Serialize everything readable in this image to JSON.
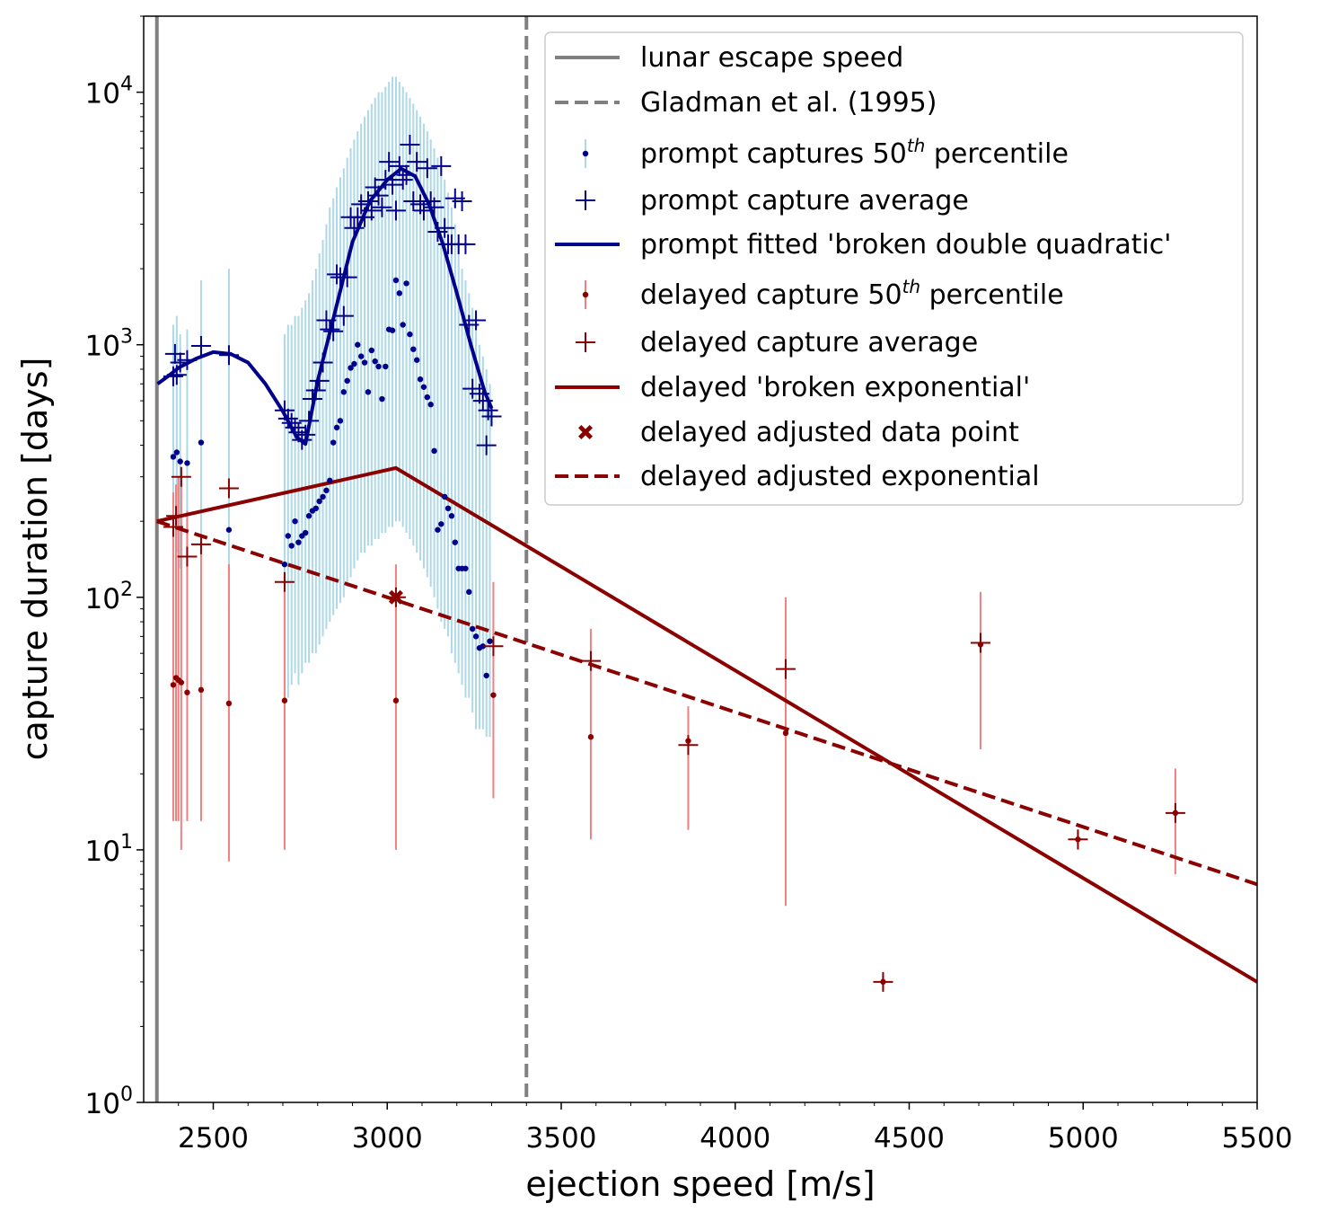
{
  "chart_data": {
    "type": "scatter",
    "title": "",
    "xlabel": "ejection speed [m/s]",
    "ylabel": "capture duration [days]",
    "xlim": [
      2300,
      5500
    ],
    "ylim": [
      1,
      20000
    ],
    "yscale": "log",
    "grid": false,
    "legend_position": "top-right",
    "x_ticks": [
      2500,
      3000,
      3500,
      4000,
      4500,
      5000,
      5500
    ],
    "x_tick_labels": [
      "2500",
      "3000",
      "3500",
      "4000",
      "4500",
      "5000",
      "5500"
    ],
    "y_ticks": [
      1,
      10,
      100,
      1000,
      10000
    ],
    "y_tick_labels": [
      {
        "base": "10",
        "exp": "0"
      },
      {
        "base": "10",
        "exp": "1"
      },
      {
        "base": "10",
        "exp": "2"
      },
      {
        "base": "10",
        "exp": "3"
      },
      {
        "base": "10",
        "exp": "4"
      }
    ],
    "colors": {
      "prompt": "#00008b",
      "prompt_err": "#add8e6",
      "delayed": "#8b0000",
      "delayed_err": "#f08080",
      "vline": "#808080"
    },
    "vlines": [
      {
        "name": "lunar escape speed",
        "x": 2338,
        "style": "solid"
      },
      {
        "name": "Gladman et al. (1995)",
        "x": 3400,
        "style": "dashed"
      }
    ],
    "prompt_median": [
      {
        "x": 2385,
        "y": 360,
        "lo": 140,
        "hi": 1200
      },
      {
        "x": 2395,
        "y": 375,
        "lo": 150,
        "hi": 1300
      },
      {
        "x": 2405,
        "y": 345,
        "lo": 130,
        "hi": 1100
      },
      {
        "x": 2425,
        "y": 340,
        "lo": 140,
        "hi": 1150
      },
      {
        "x": 2465,
        "y": 410,
        "lo": 150,
        "hi": 1800
      },
      {
        "x": 2545,
        "y": 185,
        "lo": 90,
        "hi": 2000
      },
      {
        "x": 2705,
        "y": 135,
        "lo": 30,
        "hi": 1100
      },
      {
        "x": 2715,
        "y": 175,
        "lo": 40,
        "hi": 1200
      },
      {
        "x": 2725,
        "y": 160,
        "lo": 45,
        "hi": 1200
      },
      {
        "x": 2735,
        "y": 200,
        "lo": 50,
        "hi": 1300
      },
      {
        "x": 2745,
        "y": 165,
        "lo": 45,
        "hi": 1300
      },
      {
        "x": 2755,
        "y": 175,
        "lo": 50,
        "hi": 1400
      },
      {
        "x": 2765,
        "y": 180,
        "lo": 55,
        "hi": 1500
      },
      {
        "x": 2775,
        "y": 210,
        "lo": 55,
        "hi": 1600
      },
      {
        "x": 2785,
        "y": 220,
        "lo": 60,
        "hi": 1800
      },
      {
        "x": 2795,
        "y": 225,
        "lo": 60,
        "hi": 2000
      },
      {
        "x": 2805,
        "y": 240,
        "lo": 65,
        "hi": 2300
      },
      {
        "x": 2815,
        "y": 250,
        "lo": 70,
        "hi": 2600
      },
      {
        "x": 2825,
        "y": 265,
        "lo": 75,
        "hi": 3000
      },
      {
        "x": 2835,
        "y": 290,
        "lo": 80,
        "hi": 3500
      },
      {
        "x": 2845,
        "y": 410,
        "lo": 85,
        "hi": 3800
      },
      {
        "x": 2855,
        "y": 470,
        "lo": 90,
        "hi": 4200
      },
      {
        "x": 2865,
        "y": 500,
        "lo": 95,
        "hi": 4600
      },
      {
        "x": 2875,
        "y": 650,
        "lo": 100,
        "hi": 5000
      },
      {
        "x": 2885,
        "y": 720,
        "lo": 110,
        "hi": 5500
      },
      {
        "x": 2895,
        "y": 810,
        "lo": 120,
        "hi": 6000
      },
      {
        "x": 2905,
        "y": 840,
        "lo": 130,
        "hi": 6500
      },
      {
        "x": 2915,
        "y": 1000,
        "lo": 140,
        "hi": 7000
      },
      {
        "x": 2925,
        "y": 900,
        "lo": 150,
        "hi": 7500
      },
      {
        "x": 2935,
        "y": 850,
        "lo": 150,
        "hi": 8000
      },
      {
        "x": 2945,
        "y": 650,
        "lo": 160,
        "hi": 8500
      },
      {
        "x": 2955,
        "y": 950,
        "lo": 160,
        "hi": 9000
      },
      {
        "x": 2965,
        "y": 860,
        "lo": 170,
        "hi": 9500
      },
      {
        "x": 2975,
        "y": 820,
        "lo": 170,
        "hi": 10000
      },
      {
        "x": 2985,
        "y": 610,
        "lo": 180,
        "hi": 10000
      },
      {
        "x": 2995,
        "y": 820,
        "lo": 180,
        "hi": 10500
      },
      {
        "x": 3005,
        "y": 1150,
        "lo": 190,
        "hi": 11000
      },
      {
        "x": 3015,
        "y": 1140,
        "lo": 190,
        "hi": 11500
      },
      {
        "x": 3025,
        "y": 1800,
        "lo": 200,
        "hi": 11500
      },
      {
        "x": 3035,
        "y": 1600,
        "lo": 200,
        "hi": 11000
      },
      {
        "x": 3045,
        "y": 1200,
        "lo": 190,
        "hi": 10500
      },
      {
        "x": 3055,
        "y": 1750,
        "lo": 180,
        "hi": 10000
      },
      {
        "x": 3065,
        "y": 1100,
        "lo": 170,
        "hi": 9500
      },
      {
        "x": 3075,
        "y": 960,
        "lo": 160,
        "hi": 9000
      },
      {
        "x": 3085,
        "y": 870,
        "lo": 150,
        "hi": 8500
      },
      {
        "x": 3095,
        "y": 730,
        "lo": 140,
        "hi": 8000
      },
      {
        "x": 3105,
        "y": 680,
        "lo": 130,
        "hi": 7500
      },
      {
        "x": 3115,
        "y": 620,
        "lo": 120,
        "hi": 7000
      },
      {
        "x": 3125,
        "y": 580,
        "lo": 110,
        "hi": 6500
      },
      {
        "x": 3135,
        "y": 380,
        "lo": 100,
        "hi": 6000
      },
      {
        "x": 3145,
        "y": 185,
        "lo": 90,
        "hi": 5500
      },
      {
        "x": 3155,
        "y": 195,
        "lo": 80,
        "hi": 5000
      },
      {
        "x": 3165,
        "y": 250,
        "lo": 75,
        "hi": 4500
      },
      {
        "x": 3175,
        "y": 225,
        "lo": 70,
        "hi": 4000
      },
      {
        "x": 3185,
        "y": 210,
        "lo": 60,
        "hi": 3500
      },
      {
        "x": 3195,
        "y": 165,
        "lo": 55,
        "hi": 3000
      },
      {
        "x": 3205,
        "y": 130,
        "lo": 50,
        "hi": 2500
      },
      {
        "x": 3215,
        "y": 130,
        "lo": 45,
        "hi": 2000
      },
      {
        "x": 3225,
        "y": 130,
        "lo": 40,
        "hi": 1800
      },
      {
        "x": 3235,
        "y": 105,
        "lo": 40,
        "hi": 1600
      },
      {
        "x": 3245,
        "y": 75,
        "lo": 35,
        "hi": 1400
      },
      {
        "x": 3255,
        "y": 70,
        "lo": 30,
        "hi": 1200
      },
      {
        "x": 3265,
        "y": 63,
        "lo": 30,
        "hi": 1000
      },
      {
        "x": 3275,
        "y": 64,
        "lo": 30,
        "hi": 900
      },
      {
        "x": 3285,
        "y": 49,
        "lo": 28,
        "hi": 800
      },
      {
        "x": 3295,
        "y": 67,
        "lo": 28,
        "hi": 700
      }
    ],
    "prompt_average": [
      {
        "x": 2385,
        "y": 750
      },
      {
        "x": 2390,
        "y": 920
      },
      {
        "x": 2395,
        "y": 760
      },
      {
        "x": 2405,
        "y": 850
      },
      {
        "x": 2425,
        "y": 870
      },
      {
        "x": 2465,
        "y": 990
      },
      {
        "x": 2545,
        "y": 910
      },
      {
        "x": 2705,
        "y": 550
      },
      {
        "x": 2715,
        "y": 510
      },
      {
        "x": 2725,
        "y": 490
      },
      {
        "x": 2735,
        "y": 470
      },
      {
        "x": 2745,
        "y": 450
      },
      {
        "x": 2755,
        "y": 420
      },
      {
        "x": 2765,
        "y": 440
      },
      {
        "x": 2775,
        "y": 500
      },
      {
        "x": 2785,
        "y": 610
      },
      {
        "x": 2795,
        "y": 660
      },
      {
        "x": 2805,
        "y": 720
      },
      {
        "x": 2815,
        "y": 850
      },
      {
        "x": 2825,
        "y": 1250
      },
      {
        "x": 2835,
        "y": 1150
      },
      {
        "x": 2845,
        "y": 1130
      },
      {
        "x": 2855,
        "y": 1900
      },
      {
        "x": 2865,
        "y": 1850
      },
      {
        "x": 2875,
        "y": 1300
      },
      {
        "x": 2885,
        "y": 1850
      },
      {
        "x": 2895,
        "y": 3200
      },
      {
        "x": 2905,
        "y": 2900
      },
      {
        "x": 2915,
        "y": 3200
      },
      {
        "x": 2925,
        "y": 3600
      },
      {
        "x": 2935,
        "y": 3200
      },
      {
        "x": 2945,
        "y": 3700
      },
      {
        "x": 2955,
        "y": 3400
      },
      {
        "x": 2965,
        "y": 4200
      },
      {
        "x": 2975,
        "y": 3900
      },
      {
        "x": 2985,
        "y": 3500
      },
      {
        "x": 2995,
        "y": 4500
      },
      {
        "x": 3005,
        "y": 5300
      },
      {
        "x": 3015,
        "y": 4300
      },
      {
        "x": 3025,
        "y": 3400
      },
      {
        "x": 3035,
        "y": 5100
      },
      {
        "x": 3045,
        "y": 4500
      },
      {
        "x": 3055,
        "y": 4700
      },
      {
        "x": 3065,
        "y": 6200
      },
      {
        "x": 3075,
        "y": 3700
      },
      {
        "x": 3085,
        "y": 5300
      },
      {
        "x": 3095,
        "y": 3600
      },
      {
        "x": 3105,
        "y": 3400
      },
      {
        "x": 3115,
        "y": 5000
      },
      {
        "x": 3125,
        "y": 3700
      },
      {
        "x": 3135,
        "y": 3500
      },
      {
        "x": 3145,
        "y": 2800
      },
      {
        "x": 3155,
        "y": 5100
      },
      {
        "x": 3165,
        "y": 2900
      },
      {
        "x": 3175,
        "y": 2500
      },
      {
        "x": 3185,
        "y": 2500
      },
      {
        "x": 3195,
        "y": 3800
      },
      {
        "x": 3205,
        "y": 2500
      },
      {
        "x": 3215,
        "y": 3700
      },
      {
        "x": 3225,
        "y": 2500
      },
      {
        "x": 3235,
        "y": 1200
      },
      {
        "x": 3245,
        "y": 670
      },
      {
        "x": 3255,
        "y": 1250
      },
      {
        "x": 3265,
        "y": 640
      },
      {
        "x": 3275,
        "y": 600
      },
      {
        "x": 3285,
        "y": 400
      },
      {
        "x": 3290,
        "y": 550
      },
      {
        "x": 3300,
        "y": 520
      }
    ],
    "prompt_fit": {
      "name": "prompt fitted 'broken double quadratic'",
      "points": [
        [
          2340,
          700
        ],
        [
          2370,
          750
        ],
        [
          2400,
          810
        ],
        [
          2450,
          880
        ],
        [
          2500,
          935
        ],
        [
          2550,
          920
        ],
        [
          2600,
          850
        ],
        [
          2650,
          700
        ],
        [
          2700,
          545
        ],
        [
          2740,
          430
        ],
        [
          2765,
          405
        ],
        [
          2800,
          720
        ],
        [
          2850,
          1350
        ],
        [
          2900,
          2550
        ],
        [
          2950,
          3700
        ],
        [
          3000,
          4500
        ],
        [
          3040,
          4980
        ],
        [
          3080,
          4650
        ],
        [
          3120,
          3600
        ],
        [
          3160,
          2500
        ],
        [
          3200,
          1600
        ],
        [
          3240,
          1000
        ],
        [
          3280,
          650
        ],
        [
          3300,
          560
        ]
      ]
    },
    "delayed_median": [
      {
        "x": 2385,
        "y": 45,
        "lo": 13,
        "hi": 260
      },
      {
        "x": 2393,
        "y": 48,
        "lo": 13,
        "hi": 280
      },
      {
        "x": 2400,
        "y": 47,
        "lo": 13,
        "hi": 300
      },
      {
        "x": 2408,
        "y": 46,
        "lo": 10,
        "hi": 290
      },
      {
        "x": 2425,
        "y": 42,
        "lo": 13,
        "hi": 220
      },
      {
        "x": 2465,
        "y": 43,
        "lo": 13,
        "hi": 150
      },
      {
        "x": 2545,
        "y": 38,
        "lo": 9,
        "hi": 135
      },
      {
        "x": 2705,
        "y": 39,
        "lo": 10,
        "hi": 120
      },
      {
        "x": 3025,
        "y": 39,
        "lo": 10,
        "hi": 135
      },
      {
        "x": 3305,
        "y": 41,
        "lo": 16,
        "hi": 115
      },
      {
        "x": 3585,
        "y": 28,
        "lo": 11,
        "hi": 75
      },
      {
        "x": 3865,
        "y": 27,
        "lo": 12,
        "hi": 37
      },
      {
        "x": 4145,
        "y": 29,
        "lo": 6,
        "hi": 100
      },
      {
        "x": 4425,
        "y": 3,
        "lo": 2.8,
        "hi": 3.2
      },
      {
        "x": 4705,
        "y": 65,
        "lo": 25,
        "hi": 105
      },
      {
        "x": 4985,
        "y": 11,
        "lo": 10,
        "hi": 12
      },
      {
        "x": 5265,
        "y": 14,
        "lo": 8,
        "hi": 21
      }
    ],
    "delayed_average": [
      {
        "x": 2385,
        "y": 190
      },
      {
        "x": 2393,
        "y": 210
      },
      {
        "x": 2408,
        "y": 300
      },
      {
        "x": 2425,
        "y": 145
      },
      {
        "x": 2465,
        "y": 162
      },
      {
        "x": 2545,
        "y": 270
      },
      {
        "x": 2705,
        "y": 115
      },
      {
        "x": 3025,
        "y": 100
      },
      {
        "x": 3305,
        "y": 64
      },
      {
        "x": 3585,
        "y": 56
      },
      {
        "x": 3865,
        "y": 26
      },
      {
        "x": 4145,
        "y": 52
      },
      {
        "x": 4425,
        "y": 3
      },
      {
        "x": 4705,
        "y": 66
      },
      {
        "x": 4985,
        "y": 11
      },
      {
        "x": 5265,
        "y": 14
      }
    ],
    "delayed_fit": {
      "name": "delayed 'broken exponential'",
      "points": [
        [
          2338,
          200
        ],
        [
          3025,
          325
        ],
        [
          5500,
          3
        ]
      ]
    },
    "delayed_adjusted_point": {
      "x": 3025,
      "y": 100
    },
    "delayed_adjusted_fit": {
      "name": "delayed adjusted exponential",
      "points": [
        [
          2338,
          200
        ],
        [
          5500,
          7.3
        ]
      ]
    },
    "legend": [
      {
        "label": "lunar escape speed",
        "marker": "vline-solid"
      },
      {
        "label": "Gladman et al. (1995)",
        "marker": "vline-dashed"
      },
      {
        "label": "prompt captures 50",
        "sup": "th",
        "suffix": " percentile",
        "marker": "prompt-median"
      },
      {
        "label": "prompt capture average",
        "marker": "prompt-plus"
      },
      {
        "label": "prompt fitted 'broken double quadratic'",
        "marker": "prompt-line"
      },
      {
        "label": "delayed capture 50",
        "sup": "th",
        "suffix": " percentile",
        "marker": "delayed-median"
      },
      {
        "label": "delayed capture average",
        "marker": "delayed-plus"
      },
      {
        "label": "delayed 'broken exponential'",
        "marker": "delayed-line"
      },
      {
        "label": "delayed adjusted data point",
        "marker": "delayed-x"
      },
      {
        "label": "delayed adjusted exponential",
        "marker": "delayed-dashed"
      }
    ]
  }
}
